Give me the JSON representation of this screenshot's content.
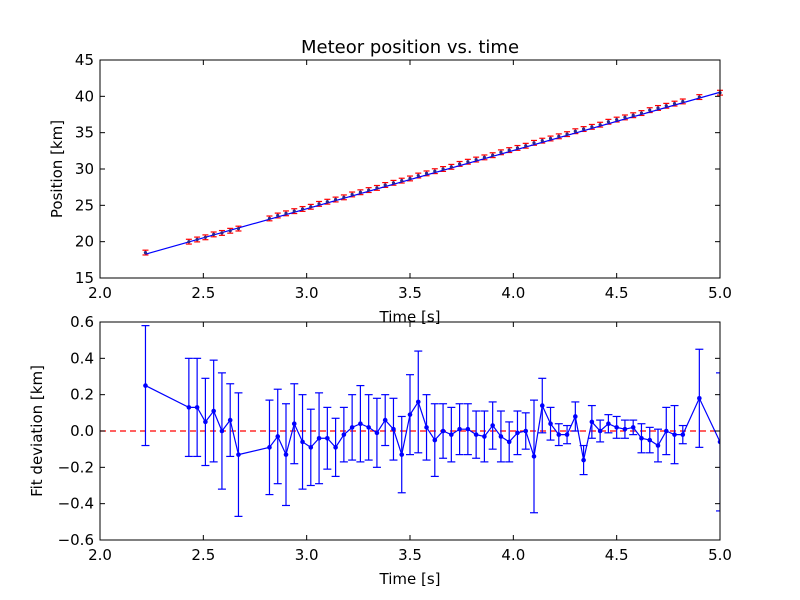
{
  "colors": {
    "background": "#ffffff",
    "series": "#0000ff",
    "fit": "#0000ff",
    "errorbar_top": "#ff0000",
    "reference": "#ff0000"
  },
  "chart_data": [
    {
      "type": "scatter",
      "title": "Meteor position vs. time",
      "xlabel": "Time [s]",
      "ylabel": "Position [km]",
      "xlim": [
        2.0,
        5.0
      ],
      "ylim": [
        15,
        45
      ],
      "xticks": [
        "2.0",
        "2.5",
        "3.0",
        "3.5",
        "4.0",
        "4.5",
        "5.0"
      ],
      "yticks": [
        "15",
        "20",
        "25",
        "30",
        "35",
        "40",
        "45"
      ],
      "grid": false,
      "series": [
        {
          "kind": "points-with-errorbars",
          "x": [
            2.22,
            2.43,
            2.47,
            2.51,
            2.55,
            2.59,
            2.63,
            2.67,
            2.82,
            2.86,
            2.9,
            2.94,
            2.98,
            3.02,
            3.06,
            3.1,
            3.14,
            3.18,
            3.22,
            3.26,
            3.3,
            3.34,
            3.38,
            3.42,
            3.46,
            3.5,
            3.54,
            3.58,
            3.62,
            3.66,
            3.7,
            3.74,
            3.78,
            3.82,
            3.86,
            3.9,
            3.94,
            3.98,
            4.02,
            4.06,
            4.1,
            4.14,
            4.18,
            4.22,
            4.26,
            4.3,
            4.34,
            4.38,
            4.42,
            4.46,
            4.5,
            4.54,
            4.58,
            4.62,
            4.66,
            4.7,
            4.74,
            4.78,
            4.82,
            4.9,
            5.0
          ],
          "y": [
            18.5,
            20.0,
            20.3,
            20.6,
            21.0,
            21.2,
            21.5,
            21.8,
            23.2,
            23.6,
            23.9,
            24.2,
            24.5,
            24.8,
            25.2,
            25.5,
            25.8,
            26.1,
            26.5,
            26.8,
            27.1,
            27.4,
            27.8,
            28.1,
            28.4,
            28.7,
            29.1,
            29.4,
            29.7,
            30.0,
            30.3,
            30.7,
            31.0,
            31.3,
            31.6,
            31.9,
            32.3,
            32.6,
            32.9,
            33.2,
            33.6,
            33.9,
            34.2,
            34.5,
            34.8,
            35.2,
            35.5,
            35.8,
            36.1,
            36.5,
            36.8,
            37.1,
            37.4,
            37.7,
            38.1,
            38.4,
            38.7,
            39.0,
            39.3,
            39.9,
            40.5
          ],
          "yerr": 0.33
        },
        {
          "kind": "fit-line",
          "x": [
            2.22,
            5.0
          ],
          "y": [
            18.28,
            40.56
          ]
        }
      ]
    },
    {
      "type": "line",
      "title": "",
      "xlabel": "Time [s]",
      "ylabel": "Fit deviation [km]",
      "xlim": [
        2.0,
        5.0
      ],
      "ylim": [
        -0.6,
        0.6
      ],
      "xticks": [
        "2.0",
        "2.5",
        "3.0",
        "3.5",
        "4.0",
        "4.5",
        "5.0"
      ],
      "yticks": [
        "0.6",
        "0.4",
        "0.2",
        "0.0",
        "−0.2",
        "−0.4",
        "−0.6"
      ],
      "grid": false,
      "reference_line": {
        "y": 0.0,
        "style": "dashed"
      },
      "series": [
        {
          "x": [
            2.22,
            2.43,
            2.47,
            2.51,
            2.55,
            2.59,
            2.63,
            2.67,
            2.82,
            2.86,
            2.9,
            2.94,
            2.98,
            3.02,
            3.06,
            3.1,
            3.14,
            3.18,
            3.22,
            3.26,
            3.3,
            3.34,
            3.38,
            3.42,
            3.46,
            3.5,
            3.54,
            3.58,
            3.62,
            3.66,
            3.7,
            3.74,
            3.78,
            3.82,
            3.86,
            3.9,
            3.94,
            3.98,
            4.02,
            4.06,
            4.1,
            4.14,
            4.18,
            4.22,
            4.26,
            4.3,
            4.34,
            4.38,
            4.42,
            4.46,
            4.5,
            4.54,
            4.58,
            4.62,
            4.66,
            4.7,
            4.74,
            4.78,
            4.82,
            4.9,
            5.0
          ],
          "y": [
            0.25,
            0.13,
            0.13,
            0.05,
            0.11,
            0.0,
            0.06,
            -0.13,
            -0.09,
            -0.03,
            -0.13,
            0.04,
            -0.06,
            -0.09,
            -0.04,
            -0.04,
            -0.09,
            -0.02,
            0.02,
            0.04,
            0.02,
            -0.01,
            0.06,
            0.01,
            -0.13,
            0.09,
            0.16,
            0.02,
            -0.05,
            0.0,
            -0.02,
            0.01,
            0.01,
            -0.02,
            -0.03,
            0.03,
            -0.03,
            -0.06,
            -0.01,
            0.0,
            -0.14,
            0.14,
            0.04,
            -0.02,
            -0.02,
            0.08,
            -0.16,
            0.05,
            0.0,
            0.04,
            0.02,
            0.01,
            0.02,
            -0.04,
            -0.05,
            -0.08,
            0.0,
            -0.02,
            -0.02,
            0.18,
            -0.06
          ],
          "yerr": [
            0.33,
            0.27,
            0.27,
            0.24,
            0.28,
            0.32,
            0.2,
            0.34,
            0.26,
            0.26,
            0.28,
            0.22,
            0.26,
            0.21,
            0.25,
            0.17,
            0.16,
            0.15,
            0.18,
            0.21,
            0.18,
            0.19,
            0.14,
            0.17,
            0.21,
            0.22,
            0.28,
            0.18,
            0.2,
            0.15,
            0.15,
            0.14,
            0.14,
            0.13,
            0.14,
            0.13,
            0.14,
            0.11,
            0.12,
            0.1,
            0.31,
            0.15,
            0.09,
            0.06,
            0.05,
            0.08,
            0.08,
            0.09,
            0.06,
            0.05,
            0.06,
            0.05,
            0.04,
            0.08,
            0.07,
            0.09,
            0.13,
            0.16,
            0.05,
            0.27,
            0.38
          ]
        }
      ]
    }
  ]
}
